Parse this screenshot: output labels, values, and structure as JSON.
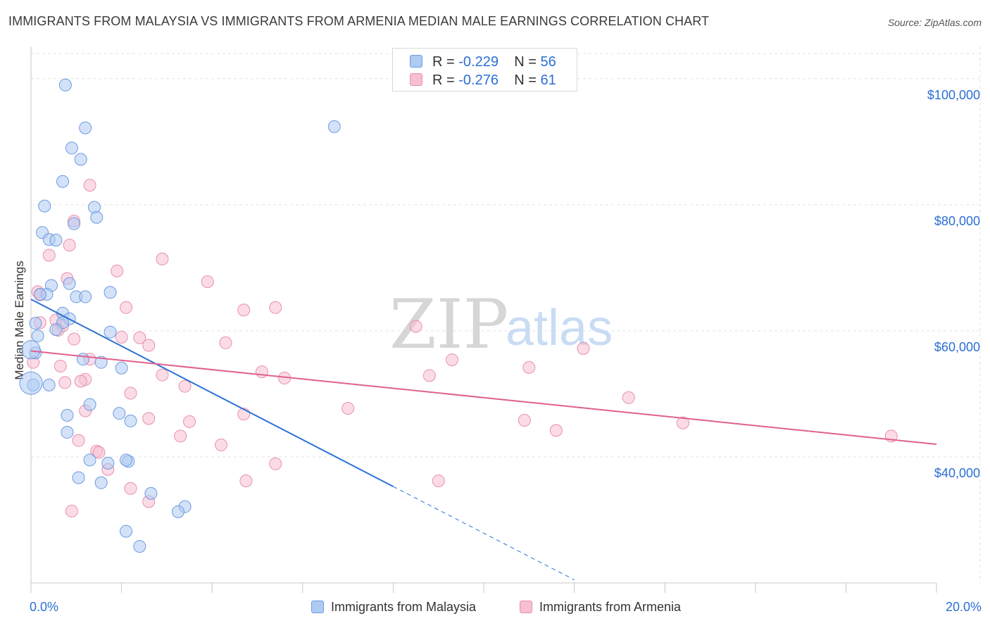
{
  "title": "IMMIGRANTS FROM MALAYSIA VS IMMIGRANTS FROM ARMENIA MEDIAN MALE EARNINGS CORRELATION CHART",
  "source": "Source: ZipAtlas.com",
  "watermark": {
    "zip": "ZIP",
    "atlas": "atlas"
  },
  "legend": {
    "r_label": "R =",
    "n_label": "N =",
    "malaysia": {
      "r": "-0.229",
      "n": "56"
    },
    "armenia": {
      "r": "-0.276",
      "n": "61"
    }
  },
  "colors": {
    "malaysia_fill": "#aecbf2",
    "malaysia_stroke": "#6d9be0",
    "malaysia_line": "#2b72d6",
    "armenia_fill": "#f7bfd1",
    "armenia_stroke": "#e88fae",
    "armenia_line": "#e0608e",
    "accent_text": "#2b6fd4"
  },
  "chart_data": {
    "type": "scatter",
    "title": "IMMIGRANTS FROM MALAYSIA VS IMMIGRANTS FROM ARMENIA MEDIAN MALE EARNINGS CORRELATION CHART",
    "xlabel": "",
    "ylabel": "Median Male Earnings",
    "xlim": [
      0,
      20
    ],
    "ylim": [
      20000,
      104000
    ],
    "x_tick_labels": [
      "0.0%",
      "20.0%"
    ],
    "y_ticks": [
      40000,
      60000,
      80000,
      100000
    ],
    "y_tick_labels": [
      "$40,000",
      "$60,000",
      "$80,000",
      "$100,000"
    ],
    "grid": true,
    "series": [
      {
        "name": "Immigrants from Malaysia",
        "r": -0.229,
        "n": 56,
        "trend": {
          "x0": 0,
          "y0": 65000,
          "x1": 8,
          "y1": 35300,
          "dashed_to_x": 12,
          "dashed_to_y": 20500
        },
        "points": [
          [
            0.76,
            99000
          ],
          [
            1.2,
            92200
          ],
          [
            6.7,
            92400
          ],
          [
            0.9,
            89000
          ],
          [
            1.1,
            87200
          ],
          [
            0.7,
            83700
          ],
          [
            0.3,
            79800
          ],
          [
            1.4,
            79600
          ],
          [
            1.45,
            78000
          ],
          [
            0.95,
            77000
          ],
          [
            0.25,
            75600
          ],
          [
            0.4,
            74500
          ],
          [
            0.55,
            74400
          ],
          [
            0.85,
            67500
          ],
          [
            0.45,
            67200
          ],
          [
            0.35,
            65800
          ],
          [
            0.2,
            65800
          ],
          [
            1.75,
            66100
          ],
          [
            1.0,
            65400
          ],
          [
            1.2,
            65400
          ],
          [
            0.7,
            62800
          ],
          [
            0.85,
            61900
          ],
          [
            0.7,
            61300
          ],
          [
            0.55,
            60200
          ],
          [
            0.1,
            61200
          ],
          [
            1.75,
            59800
          ],
          [
            0.15,
            59200
          ],
          [
            0.1,
            56500
          ],
          [
            1.15,
            55500
          ],
          [
            1.55,
            55000
          ],
          [
            2.0,
            54100
          ],
          [
            0.4,
            51400
          ],
          [
            0.05,
            51400
          ],
          [
            1.3,
            48300
          ],
          [
            1.95,
            46900
          ],
          [
            0.8,
            46600
          ],
          [
            2.2,
            45700
          ],
          [
            0.8,
            43900
          ],
          [
            1.3,
            39500
          ],
          [
            1.7,
            39000
          ],
          [
            2.15,
            39300
          ],
          [
            2.1,
            39500
          ],
          [
            1.05,
            36700
          ],
          [
            1.55,
            35900
          ],
          [
            2.65,
            34200
          ],
          [
            3.4,
            32100
          ],
          [
            3.25,
            31300
          ],
          [
            2.1,
            28200
          ],
          [
            2.4,
            25800
          ]
        ]
      },
      {
        "name": "Immigrants from Armenia",
        "r": -0.276,
        "n": 61,
        "trend": {
          "x0": 0,
          "y0": 56800,
          "x1": 20,
          "y1": 42000
        },
        "points": [
          [
            1.3,
            83100
          ],
          [
            0.95,
            77400
          ],
          [
            2.9,
            71400
          ],
          [
            0.4,
            72000
          ],
          [
            0.85,
            73600
          ],
          [
            1.9,
            69500
          ],
          [
            0.8,
            68300
          ],
          [
            3.9,
            67800
          ],
          [
            0.15,
            66200
          ],
          [
            0.2,
            65700
          ],
          [
            5.4,
            63700
          ],
          [
            4.7,
            63300
          ],
          [
            2.1,
            63700
          ],
          [
            0.55,
            61700
          ],
          [
            0.2,
            61300
          ],
          [
            0.7,
            60800
          ],
          [
            0.6,
            60100
          ],
          [
            0.95,
            58700
          ],
          [
            2.0,
            59000
          ],
          [
            2.4,
            58900
          ],
          [
            4.3,
            58100
          ],
          [
            2.6,
            57700
          ],
          [
            8.5,
            60700
          ],
          [
            12.2,
            57200
          ],
          [
            0.05,
            55000
          ],
          [
            1.3,
            55500
          ],
          [
            9.3,
            55400
          ],
          [
            0.65,
            54400
          ],
          [
            11.0,
            54200
          ],
          [
            5.1,
            53500
          ],
          [
            2.9,
            53000
          ],
          [
            8.8,
            52900
          ],
          [
            5.6,
            52500
          ],
          [
            1.2,
            52300
          ],
          [
            1.1,
            52000
          ],
          [
            3.4,
            51200
          ],
          [
            0.75,
            51800
          ],
          [
            2.2,
            50100
          ],
          [
            13.2,
            49400
          ],
          [
            7.0,
            47700
          ],
          [
            1.2,
            47300
          ],
          [
            4.7,
            46800
          ],
          [
            2.6,
            46100
          ],
          [
            10.9,
            45800
          ],
          [
            3.5,
            45600
          ],
          [
            14.4,
            45400
          ],
          [
            11.6,
            44200
          ],
          [
            3.3,
            43300
          ],
          [
            19.0,
            43300
          ],
          [
            1.05,
            42600
          ],
          [
            4.2,
            41900
          ],
          [
            1.45,
            40900
          ],
          [
            1.5,
            40700
          ],
          [
            5.4,
            38900
          ],
          [
            1.7,
            38000
          ],
          [
            4.75,
            36200
          ],
          [
            9.0,
            36200
          ],
          [
            2.2,
            35000
          ],
          [
            2.6,
            32900
          ],
          [
            0.9,
            31400
          ]
        ]
      }
    ]
  }
}
